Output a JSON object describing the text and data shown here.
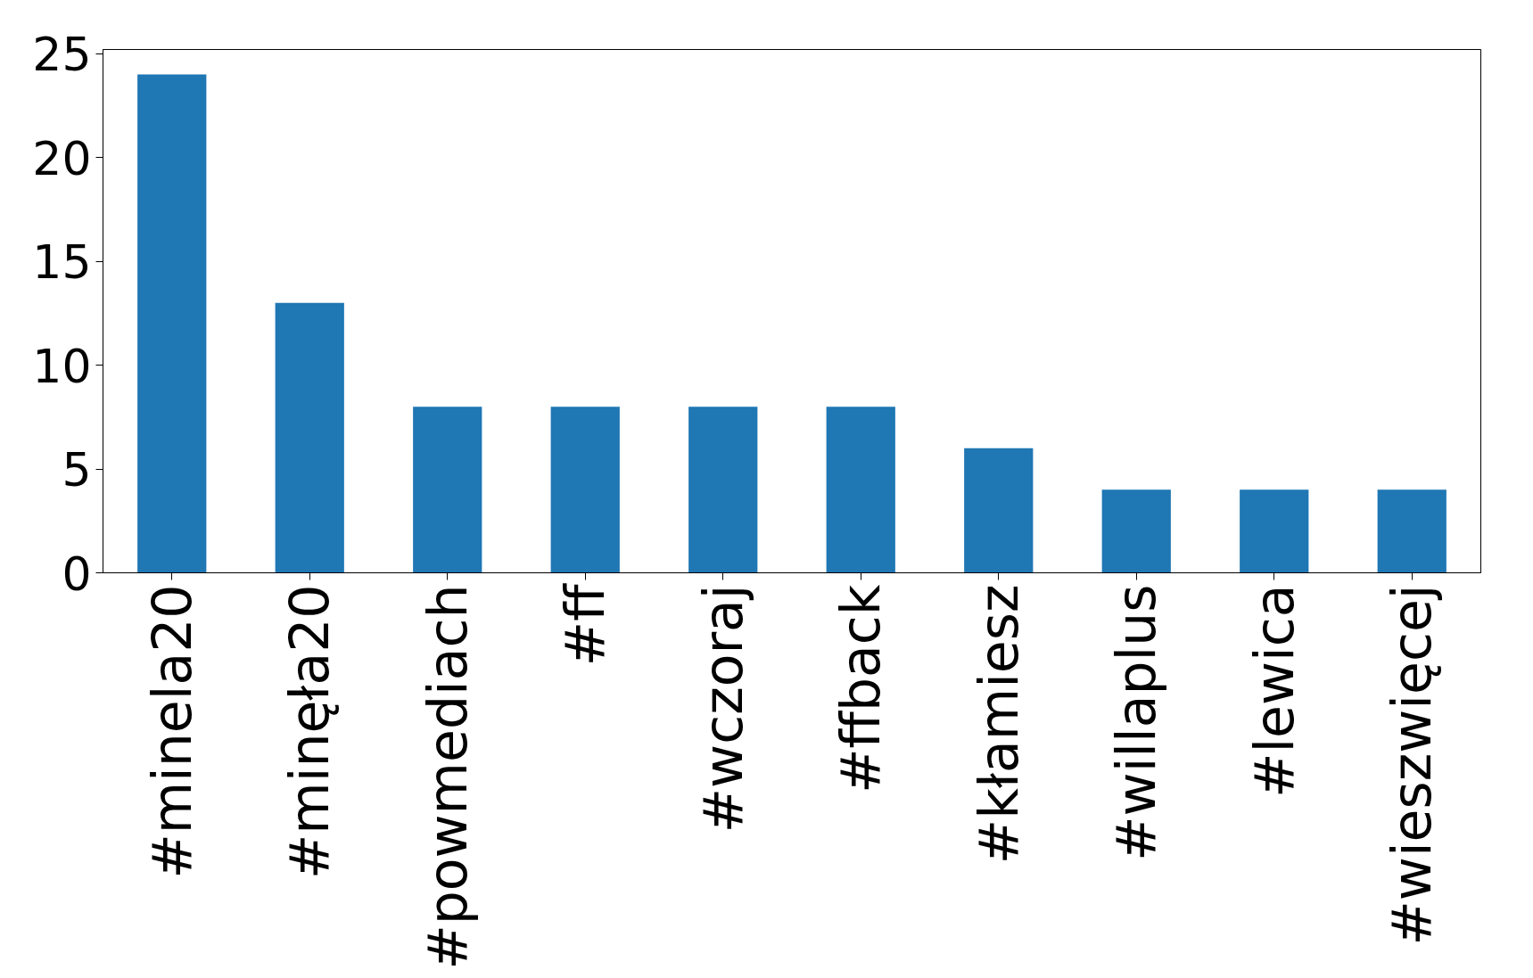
{
  "chart_data": {
    "type": "bar",
    "categories": [
      "#minela20",
      "#minęła20",
      "#powmediach",
      "#ff",
      "#wczoraj",
      "#ffback",
      "#kłamiesz",
      "#willaplus",
      "#lewica",
      "#wieszwięcej"
    ],
    "values": [
      24,
      13,
      8,
      8,
      8,
      8,
      6,
      4,
      4,
      4
    ],
    "color": "#1f77b4",
    "ylim": [
      0,
      25.2
    ],
    "yticks": [
      0,
      5,
      10,
      15,
      20,
      25
    ],
    "grid": false
  }
}
